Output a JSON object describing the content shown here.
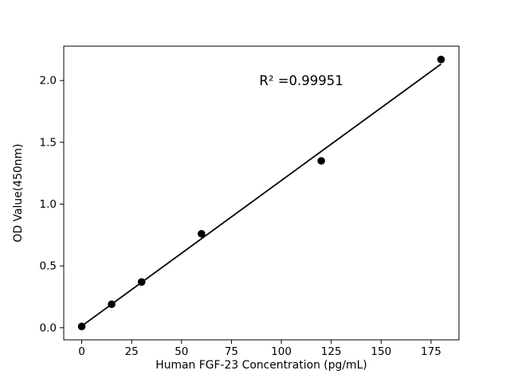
{
  "chart_data": {
    "type": "scatter",
    "title": "",
    "xlabel": "Human FGF-23 Concentration (pg/mL)",
    "ylabel": "OD Value(450nm)",
    "x": [
      0,
      15,
      30,
      60,
      120,
      180
    ],
    "y": [
      0.01,
      0.19,
      0.37,
      0.76,
      1.35,
      2.17
    ],
    "fit_line": {
      "slope": 0.011774,
      "intercept": 0.0136,
      "x_start": 0,
      "x_end": 180
    },
    "annotation": {
      "text": "R² =0.99951",
      "x": 110,
      "y": 2.0
    },
    "xlim": [
      -9,
      189
    ],
    "ylim": [
      -0.098,
      2.278
    ],
    "xticks": [
      0,
      25,
      50,
      75,
      100,
      125,
      150,
      175
    ],
    "yticks": [
      0.0,
      0.5,
      1.0,
      1.5,
      2.0
    ],
    "ytick_decimals": 1,
    "grid": false,
    "legend": null,
    "marker_color": "#000000",
    "line_color": "#000000",
    "axis_color": "#000000",
    "background": "#ffffff"
  }
}
